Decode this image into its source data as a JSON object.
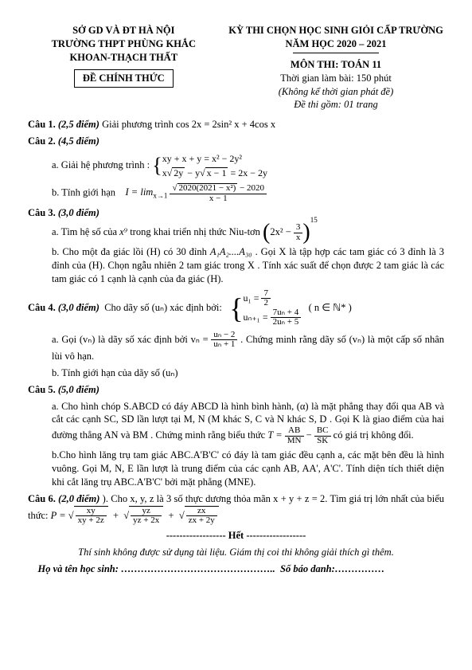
{
  "header": {
    "left": {
      "line1": "SỞ GD VÀ ĐT HÀ NỘI",
      "line2": "TRƯỜNG THPT PHÙNG KHẮC",
      "line3": "KHOAN-THẠCH THẤT",
      "dechinh": "ĐỀ CHÍNH THỨC"
    },
    "right": {
      "line1": "KỲ THI CHỌN HỌC SINH GIỎI CẤP TRƯỜNG",
      "line2": "NĂM HỌC 2020 – 2021",
      "subject": "MÔN THI: TOÁN 11",
      "time": "Thời gian làm bài: 150 phút",
      "note": "(Không kể thời gian phát đề)",
      "pages": "Đề thi gồm: 01 trang"
    }
  },
  "q1": {
    "label": "Câu 1.",
    "points": "(2,5 điểm)",
    "text": "Giải phương trình",
    "eq": "cos 2x = 2sin² x + 4cos x"
  },
  "q2": {
    "label": "Câu 2.",
    "points": "(4,5 điểm)",
    "a_lead": "a. Giải hệ phương trình :",
    "sys1": "xy + x + y = x² − 2y²",
    "sys2_pre_x": "x",
    "sys2_sqrt1": "2y",
    "sys2_mid": " − y",
    "sys2_sqrt2": "x − 1",
    "sys2_rhs": " = 2x − 2y",
    "b_lead": "b. Tính giới hạn",
    "lim_lhs": "I = lim",
    "lim_sub": "x→1",
    "lim_num_sqrt": "2020(2021 − x²)",
    "lim_num_after": " − 2020",
    "lim_den": "x − 1"
  },
  "q3": {
    "label": "Câu 3.",
    "points": "(3,0  điểm)",
    "a_text1": "a. Tìm hệ số của ",
    "a_x9": "x⁹",
    "a_text2": " trong khai triển nhị thức Niu-tơn  ",
    "paren_inner_l": "2x² − ",
    "paren_frac_num": "3",
    "paren_frac_den": "x",
    "paren_exp": "15",
    "b_p1": "b. Cho một đa giác lồi (H) có 30 đỉnh ",
    "b_vertices": "A₁A₂....A₃₀",
    "b_p1b": ". Gọi X là tập hợp các tam giác có 3 đỉnh là 3 đỉnh của (H). Chọn ngẫu nhiên 2 tam giác trong X . Tính xác suất để chọn được 2 tam giác là các tam giác có 1 cạnh là cạnh của đa giác (H)."
  },
  "q4": {
    "label": "Câu 4.",
    "points": "(3,0 điểm)",
    "lead": "Cho dãy số (uₙ)  xác định bởi:",
    "sys1_l": "u₁ = ",
    "sys1_num": "7",
    "sys1_den": "2",
    "sys2_l": "uₙ₊₁ = ",
    "sys2_num": "7uₙ + 4",
    "sys2_den": "2uₙ + 5",
    "cond": "( n ∈ ℕ* )",
    "a_t1": "a. Gọi (vₙ) là dãy số  xác định bởi  ",
    "a_vn": "vₙ = ",
    "a_num": "uₙ − 2",
    "a_den": "uₙ + 1",
    "a_t2": ". Chứng minh rằng dãy số  (vₙ)  là một cấp số nhân lùi vô hạn.",
    "b": "b. Tính  giới hạn của dãy số (uₙ)"
  },
  "q5": {
    "label": "Câu 5.",
    "points": "(5,0 điểm)",
    "a_p1": "a. Cho hình chóp S.ABCD có đáy ABCD là hình bình hành, (α) là mặt phẳng thay đổi qua AB và cắt các cạnh SC, SD lần lượt tại M, N (M  khác S, C và N khác S, D . Gọi K là giao điểm của hai đường thẳng  AN  và BM . Chứng minh rằng biểu thức ",
    "T_eq": "T = ",
    "f1n": "AB",
    "f1d": "MN",
    "minus": " − ",
    "f2n": "BC",
    "f2d": "SK",
    "a_p2": " có giá trị không đổi.",
    "b": "b.Cho hình lăng trụ tam giác  ABC.A'B'C'  có đáy là tam giác đều cạnh a, các mặt bên đều là hình vuông. Gọi M, N, E  lần lượt là trung điểm của các cạnh  AB, AA', A'C'. Tính diện tích thiết diện khi cắt lăng trụ  ABC.A'B'C' bởi mặt phẳng  (MNE)."
  },
  "q6": {
    "label": "Câu 6.",
    "points": "(2,0 điểm)",
    "lead": " ). Cho x, y, z là 3 số thực dương thỏa mãn x + y + z = 2. Tìm giá trị lớn nhất của biểu thức:   ",
    "P": "P  = ",
    "t1n": "xy",
    "t1d": "xy + 2z",
    "t2n": "yz",
    "t2d": "yz + 2x",
    "t3n": "zx",
    "t3d": "zx + 2y"
  },
  "footer": {
    "het": "Hết",
    "note": "Thí  sinh không được sử dụng tài liệu. Giám thị coi thi không giải thích gì thêm.",
    "name": "Họ và tên học sinh: ………………………………………..",
    "sbd": "Số báo danh:……………"
  }
}
